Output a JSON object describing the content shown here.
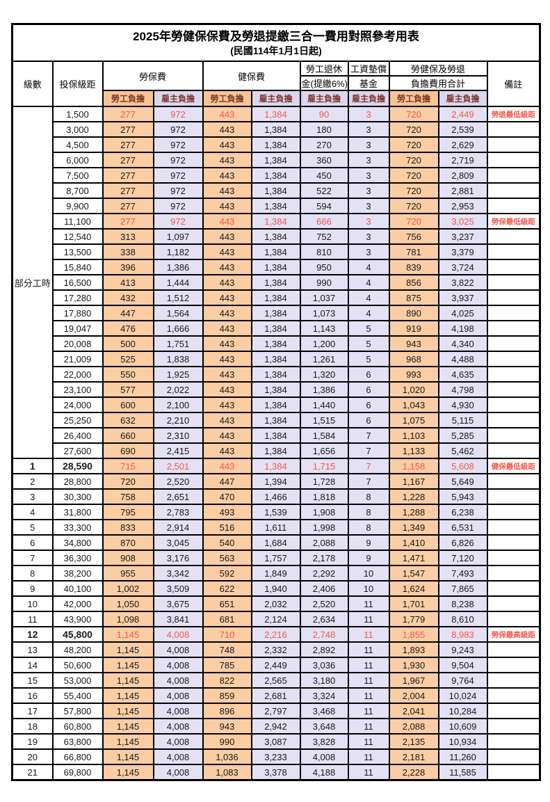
{
  "title": "2025年勞健保保費及勞退提繳三合一費用對照參考用表",
  "subtitle": "(民國114年1月1日起)",
  "colors": {
    "orange": "#f9c493",
    "orange-light": "#facda4",
    "lavender": "#d9d6ee",
    "lavender-light": "#e3e1f3",
    "red": "#fa564c",
    "maroon": "#7d372a"
  },
  "header": {
    "level": "級數",
    "bracket": "投保級距",
    "labor": "勞保費",
    "health": "健保費",
    "pension_line1": "勞工退休",
    "pension_line2": "金(提繳6%)",
    "fund_line1": "工資墊償",
    "fund_line2": "基金",
    "total_line1": "勞健保及勞退",
    "total_line2": "負擔費用合計",
    "remark": "備註",
    "employee": "勞工負擔",
    "employer": "雇主負擔"
  },
  "part_time_label": "部分工時",
  "part_time_rowspan": 23,
  "rows": [
    {
      "level": "",
      "bracket": "1,500",
      "labor_w": "277",
      "labor_e": "972",
      "health_w": "443",
      "health_e": "1,384",
      "pension_e": "90",
      "fund_e": "3",
      "total_w": "720",
      "total_e": "2,449",
      "remark": "勞退最低級距",
      "red": true,
      "bold": false
    },
    {
      "level": "",
      "bracket": "3,000",
      "labor_w": "277",
      "labor_e": "972",
      "health_w": "443",
      "health_e": "1,384",
      "pension_e": "180",
      "fund_e": "3",
      "total_w": "720",
      "total_e": "2,539",
      "remark": "",
      "red": false,
      "bold": false
    },
    {
      "level": "",
      "bracket": "4,500",
      "labor_w": "277",
      "labor_e": "972",
      "health_w": "443",
      "health_e": "1,384",
      "pension_e": "270",
      "fund_e": "3",
      "total_w": "720",
      "total_e": "2,629",
      "remark": "",
      "red": false,
      "bold": false
    },
    {
      "level": "",
      "bracket": "6,000",
      "labor_w": "277",
      "labor_e": "972",
      "health_w": "443",
      "health_e": "1,384",
      "pension_e": "360",
      "fund_e": "3",
      "total_w": "720",
      "total_e": "2,719",
      "remark": "",
      "red": false,
      "bold": false
    },
    {
      "level": "",
      "bracket": "7,500",
      "labor_w": "277",
      "labor_e": "972",
      "health_w": "443",
      "health_e": "1,384",
      "pension_e": "450",
      "fund_e": "3",
      "total_w": "720",
      "total_e": "2,809",
      "remark": "",
      "red": false,
      "bold": false
    },
    {
      "level": "",
      "bracket": "8,700",
      "labor_w": "277",
      "labor_e": "972",
      "health_w": "443",
      "health_e": "1,384",
      "pension_e": "522",
      "fund_e": "3",
      "total_w": "720",
      "total_e": "2,881",
      "remark": "",
      "red": false,
      "bold": false
    },
    {
      "level": "",
      "bracket": "9,900",
      "labor_w": "277",
      "labor_e": "972",
      "health_w": "443",
      "health_e": "1,384",
      "pension_e": "594",
      "fund_e": "3",
      "total_w": "720",
      "total_e": "2,953",
      "remark": "",
      "red": false,
      "bold": false
    },
    {
      "level": "",
      "bracket": "11,100",
      "labor_w": "277",
      "labor_e": "972",
      "health_w": "443",
      "health_e": "1,384",
      "pension_e": "666",
      "fund_e": "3",
      "total_w": "720",
      "total_e": "3,025",
      "remark": "勞保最低級距",
      "red": true,
      "bold": false
    },
    {
      "level": "",
      "bracket": "12,540",
      "labor_w": "313",
      "labor_e": "1,097",
      "health_w": "443",
      "health_e": "1,384",
      "pension_e": "752",
      "fund_e": "3",
      "total_w": "756",
      "total_e": "3,237",
      "remark": "",
      "red": false,
      "bold": false
    },
    {
      "level": "",
      "bracket": "13,500",
      "labor_w": "338",
      "labor_e": "1,182",
      "health_w": "443",
      "health_e": "1,384",
      "pension_e": "810",
      "fund_e": "3",
      "total_w": "781",
      "total_e": "3,379",
      "remark": "",
      "red": false,
      "bold": false
    },
    {
      "level": "",
      "bracket": "15,840",
      "labor_w": "396",
      "labor_e": "1,386",
      "health_w": "443",
      "health_e": "1,384",
      "pension_e": "950",
      "fund_e": "4",
      "total_w": "839",
      "total_e": "3,724",
      "remark": "",
      "red": false,
      "bold": false
    },
    {
      "level": "",
      "bracket": "16,500",
      "labor_w": "413",
      "labor_e": "1,444",
      "health_w": "443",
      "health_e": "1,384",
      "pension_e": "990",
      "fund_e": "4",
      "total_w": "856",
      "total_e": "3,822",
      "remark": "",
      "red": false,
      "bold": false
    },
    {
      "level": "",
      "bracket": "17,280",
      "labor_w": "432",
      "labor_e": "1,512",
      "health_w": "443",
      "health_e": "1,384",
      "pension_e": "1,037",
      "fund_e": "4",
      "total_w": "875",
      "total_e": "3,937",
      "remark": "",
      "red": false,
      "bold": false
    },
    {
      "level": "",
      "bracket": "17,880",
      "labor_w": "447",
      "labor_e": "1,564",
      "health_w": "443",
      "health_e": "1,384",
      "pension_e": "1,073",
      "fund_e": "4",
      "total_w": "890",
      "total_e": "4,025",
      "remark": "",
      "red": false,
      "bold": false
    },
    {
      "level": "",
      "bracket": "19,047",
      "labor_w": "476",
      "labor_e": "1,666",
      "health_w": "443",
      "health_e": "1,384",
      "pension_e": "1,143",
      "fund_e": "5",
      "total_w": "919",
      "total_e": "4,198",
      "remark": "",
      "red": false,
      "bold": false
    },
    {
      "level": "",
      "bracket": "20,008",
      "labor_w": "500",
      "labor_e": "1,751",
      "health_w": "443",
      "health_e": "1,384",
      "pension_e": "1,200",
      "fund_e": "5",
      "total_w": "943",
      "total_e": "4,340",
      "remark": "",
      "red": false,
      "bold": false
    },
    {
      "level": "",
      "bracket": "21,009",
      "labor_w": "525",
      "labor_e": "1,838",
      "health_w": "443",
      "health_e": "1,384",
      "pension_e": "1,261",
      "fund_e": "5",
      "total_w": "968",
      "total_e": "4,488",
      "remark": "",
      "red": false,
      "bold": false
    },
    {
      "level": "",
      "bracket": "22,000",
      "labor_w": "550",
      "labor_e": "1,925",
      "health_w": "443",
      "health_e": "1,384",
      "pension_e": "1,320",
      "fund_e": "6",
      "total_w": "993",
      "total_e": "4,635",
      "remark": "",
      "red": false,
      "bold": false
    },
    {
      "level": "",
      "bracket": "23,100",
      "labor_w": "577",
      "labor_e": "2,022",
      "health_w": "443",
      "health_e": "1,384",
      "pension_e": "1,386",
      "fund_e": "6",
      "total_w": "1,020",
      "total_e": "4,798",
      "remark": "",
      "red": false,
      "bold": false
    },
    {
      "level": "",
      "bracket": "24,000",
      "labor_w": "600",
      "labor_e": "2,100",
      "health_w": "443",
      "health_e": "1,384",
      "pension_e": "1,440",
      "fund_e": "6",
      "total_w": "1,043",
      "total_e": "4,930",
      "remark": "",
      "red": false,
      "bold": false
    },
    {
      "level": "",
      "bracket": "25,250",
      "labor_w": "632",
      "labor_e": "2,210",
      "health_w": "443",
      "health_e": "1,384",
      "pension_e": "1,515",
      "fund_e": "6",
      "total_w": "1,075",
      "total_e": "5,115",
      "remark": "",
      "red": false,
      "bold": false
    },
    {
      "level": "",
      "bracket": "26,400",
      "labor_w": "660",
      "labor_e": "2,310",
      "health_w": "443",
      "health_e": "1,384",
      "pension_e": "1,584",
      "fund_e": "7",
      "total_w": "1,103",
      "total_e": "5,285",
      "remark": "",
      "red": false,
      "bold": false
    },
    {
      "level": "",
      "bracket": "27,600",
      "labor_w": "690",
      "labor_e": "2,415",
      "health_w": "443",
      "health_e": "1,384",
      "pension_e": "1,656",
      "fund_e": "7",
      "total_w": "1,133",
      "total_e": "5,462",
      "remark": "",
      "red": false,
      "bold": false
    },
    {
      "level": "1",
      "bracket": "28,590",
      "labor_w": "715",
      "labor_e": "2,501",
      "health_w": "443",
      "health_e": "1,384",
      "pension_e": "1,715",
      "fund_e": "7",
      "total_w": "1,158",
      "total_e": "5,608",
      "remark": "健保最低級距",
      "red": true,
      "bold": true
    },
    {
      "level": "2",
      "bracket": "28,800",
      "labor_w": "720",
      "labor_e": "2,520",
      "health_w": "447",
      "health_e": "1,394",
      "pension_e": "1,728",
      "fund_e": "7",
      "total_w": "1,167",
      "total_e": "5,649",
      "remark": "",
      "red": false,
      "bold": false
    },
    {
      "level": "3",
      "bracket": "30,300",
      "labor_w": "758",
      "labor_e": "2,651",
      "health_w": "470",
      "health_e": "1,466",
      "pension_e": "1,818",
      "fund_e": "8",
      "total_w": "1,228",
      "total_e": "5,943",
      "remark": "",
      "red": false,
      "bold": false
    },
    {
      "level": "4",
      "bracket": "31,800",
      "labor_w": "795",
      "labor_e": "2,783",
      "health_w": "493",
      "health_e": "1,539",
      "pension_e": "1,908",
      "fund_e": "8",
      "total_w": "1,288",
      "total_e": "6,238",
      "remark": "",
      "red": false,
      "bold": false
    },
    {
      "level": "5",
      "bracket": "33,300",
      "labor_w": "833",
      "labor_e": "2,914",
      "health_w": "516",
      "health_e": "1,611",
      "pension_e": "1,998",
      "fund_e": "8",
      "total_w": "1,349",
      "total_e": "6,531",
      "remark": "",
      "red": false,
      "bold": false
    },
    {
      "level": "6",
      "bracket": "34,800",
      "labor_w": "870",
      "labor_e": "3,045",
      "health_w": "540",
      "health_e": "1,684",
      "pension_e": "2,088",
      "fund_e": "9",
      "total_w": "1,410",
      "total_e": "6,826",
      "remark": "",
      "red": false,
      "bold": false
    },
    {
      "level": "7",
      "bracket": "36,300",
      "labor_w": "908",
      "labor_e": "3,176",
      "health_w": "563",
      "health_e": "1,757",
      "pension_e": "2,178",
      "fund_e": "9",
      "total_w": "1,471",
      "total_e": "7,120",
      "remark": "",
      "red": false,
      "bold": false
    },
    {
      "level": "8",
      "bracket": "38,200",
      "labor_w": "955",
      "labor_e": "3,342",
      "health_w": "592",
      "health_e": "1,849",
      "pension_e": "2,292",
      "fund_e": "10",
      "total_w": "1,547",
      "total_e": "7,493",
      "remark": "",
      "red": false,
      "bold": false
    },
    {
      "level": "9",
      "bracket": "40,100",
      "labor_w": "1,002",
      "labor_e": "3,509",
      "health_w": "622",
      "health_e": "1,940",
      "pension_e": "2,406",
      "fund_e": "10",
      "total_w": "1,624",
      "total_e": "7,865",
      "remark": "",
      "red": false,
      "bold": false
    },
    {
      "level": "10",
      "bracket": "42,000",
      "labor_w": "1,050",
      "labor_e": "3,675",
      "health_w": "651",
      "health_e": "2,032",
      "pension_e": "2,520",
      "fund_e": "11",
      "total_w": "1,701",
      "total_e": "8,238",
      "remark": "",
      "red": false,
      "bold": false
    },
    {
      "level": "11",
      "bracket": "43,900",
      "labor_w": "1,098",
      "labor_e": "3,841",
      "health_w": "681",
      "health_e": "2,124",
      "pension_e": "2,634",
      "fund_e": "11",
      "total_w": "1,779",
      "total_e": "8,610",
      "remark": "",
      "red": false,
      "bold": false
    },
    {
      "level": "12",
      "bracket": "45,800",
      "labor_w": "1,145",
      "labor_e": "4,008",
      "health_w": "710",
      "health_e": "2,216",
      "pension_e": "2,748",
      "fund_e": "11",
      "total_w": "1,855",
      "total_e": "8,983",
      "remark": "勞保最高級距",
      "red": true,
      "bold": true
    },
    {
      "level": "13",
      "bracket": "48,200",
      "labor_w": "1,145",
      "labor_e": "4,008",
      "health_w": "748",
      "health_e": "2,332",
      "pension_e": "2,892",
      "fund_e": "11",
      "total_w": "1,893",
      "total_e": "9,243",
      "remark": "",
      "red": false,
      "bold": false
    },
    {
      "level": "14",
      "bracket": "50,600",
      "labor_w": "1,145",
      "labor_e": "4,008",
      "health_w": "785",
      "health_e": "2,449",
      "pension_e": "3,036",
      "fund_e": "11",
      "total_w": "1,930",
      "total_e": "9,504",
      "remark": "",
      "red": false,
      "bold": false
    },
    {
      "level": "15",
      "bracket": "53,000",
      "labor_w": "1,145",
      "labor_e": "4,008",
      "health_w": "822",
      "health_e": "2,565",
      "pension_e": "3,180",
      "fund_e": "11",
      "total_w": "1,967",
      "total_e": "9,764",
      "remark": "",
      "red": false,
      "bold": false
    },
    {
      "level": "16",
      "bracket": "55,400",
      "labor_w": "1,145",
      "labor_e": "4,008",
      "health_w": "859",
      "health_e": "2,681",
      "pension_e": "3,324",
      "fund_e": "11",
      "total_w": "2,004",
      "total_e": "10,024",
      "remark": "",
      "red": false,
      "bold": false
    },
    {
      "level": "17",
      "bracket": "57,800",
      "labor_w": "1,145",
      "labor_e": "4,008",
      "health_w": "896",
      "health_e": "2,797",
      "pension_e": "3,468",
      "fund_e": "11",
      "total_w": "2,041",
      "total_e": "10,284",
      "remark": "",
      "red": false,
      "bold": false
    },
    {
      "level": "18",
      "bracket": "60,800",
      "labor_w": "1,145",
      "labor_e": "4,008",
      "health_w": "943",
      "health_e": "2,942",
      "pension_e": "3,648",
      "fund_e": "11",
      "total_w": "2,088",
      "total_e": "10,609",
      "remark": "",
      "red": false,
      "bold": false
    },
    {
      "level": "19",
      "bracket": "63,800",
      "labor_w": "1,145",
      "labor_e": "4,008",
      "health_w": "990",
      "health_e": "3,087",
      "pension_e": "3,828",
      "fund_e": "11",
      "total_w": "2,135",
      "total_e": "10,934",
      "remark": "",
      "red": false,
      "bold": false
    },
    {
      "level": "20",
      "bracket": "66,800",
      "labor_w": "1,145",
      "labor_e": "4,008",
      "health_w": "1,036",
      "health_e": "3,233",
      "pension_e": "4,008",
      "fund_e": "11",
      "total_w": "2,181",
      "total_e": "11,260",
      "remark": "",
      "red": false,
      "bold": false
    },
    {
      "level": "21",
      "bracket": "69,800",
      "labor_w": "1,145",
      "labor_e": "4,008",
      "health_w": "1,083",
      "health_e": "3,378",
      "pension_e": "4,188",
      "fund_e": "11",
      "total_w": "2,228",
      "total_e": "11,585",
      "remark": "",
      "red": false,
      "bold": false
    }
  ]
}
